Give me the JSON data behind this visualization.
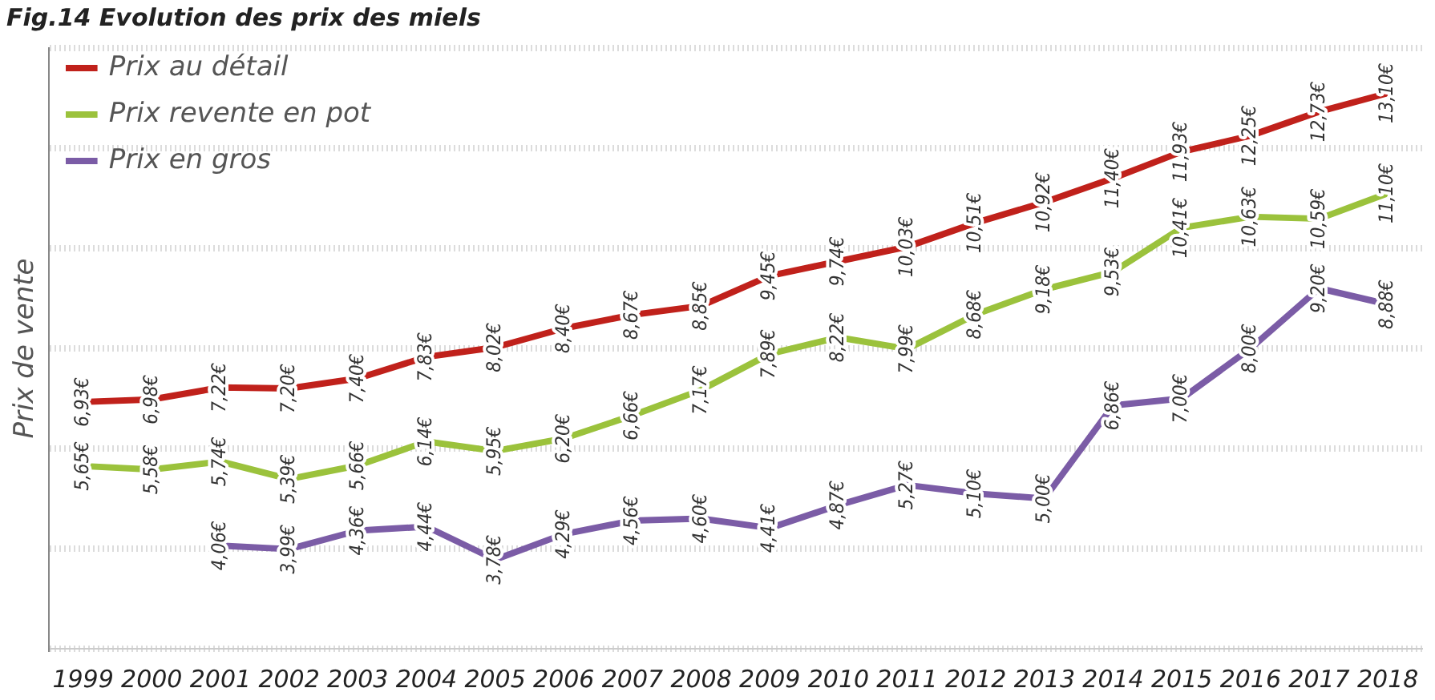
{
  "chart_data": {
    "type": "line",
    "title": "Fig.14 Evolution des prix des miels",
    "ylabel": "Prix de vente",
    "categories": [
      "1999",
      "2000",
      "2001",
      "2002",
      "2003",
      "2004",
      "2005",
      "2006",
      "2007",
      "2008",
      "2009",
      "2010",
      "2011",
      "2012",
      "2013",
      "2014",
      "2015",
      "2016",
      "2017",
      "2018"
    ],
    "ylim": [
      2,
      14
    ],
    "yticks": [
      {
        "value": 2,
        "label": null
      },
      {
        "value": 4,
        "label": null
      },
      {
        "value": 6,
        "label": null
      },
      {
        "value": 8,
        "label": null
      },
      {
        "value": 10,
        "label": null
      },
      {
        "value": 12,
        "label": null
      },
      {
        "value": 14,
        "label": null
      }
    ],
    "tick_labels": "x",
    "grid": "y",
    "legend": "top left",
    "marker": "none",
    "line_style": "solid",
    "series": [
      {
        "name": "Prix au détail",
        "color": "#c0211b",
        "values": [
          6.93,
          6.98,
          7.22,
          7.2,
          7.4,
          7.83,
          8.02,
          8.4,
          8.67,
          8.85,
          9.45,
          9.74,
          10.03,
          10.51,
          10.92,
          11.4,
          11.93,
          12.25,
          12.73,
          13.1
        ],
        "value_labels": [
          "6,93€",
          "6,98€",
          "7,22€",
          "7,20€",
          "7,40€",
          "7,83€",
          "8,02€",
          "8,40€",
          "8,67€",
          "8,85€",
          "9,45€",
          "9,74€",
          "10,03€",
          "10,51€",
          "10,92€",
          "11,40€",
          "11,93€",
          "12,25€",
          "12,73€",
          "13,10€"
        ]
      },
      {
        "name": "Prix revente en pot",
        "color": "#9bc23c",
        "values": [
          5.65,
          5.58,
          5.74,
          5.39,
          5.66,
          6.14,
          5.95,
          6.2,
          6.66,
          7.17,
          7.89,
          8.22,
          7.99,
          8.68,
          9.18,
          9.53,
          10.41,
          10.63,
          10.59,
          11.1
        ],
        "value_labels": [
          "5,65€",
          "5,58€",
          "5,74€",
          "5,39€",
          "5,66€",
          "6,14€",
          "5,95€",
          "6,20€",
          "6,66€",
          "7,17€",
          "7,89€",
          "8,22€",
          "7,99€",
          "8,68€",
          "9,18€",
          "9,53€",
          "10,41€",
          "10,63€",
          "10,59€",
          "11,10€"
        ]
      },
      {
        "name": "Prix en gros",
        "color": "#7b5ca6",
        "values": [
          null,
          null,
          4.06,
          3.99,
          4.36,
          4.44,
          3.78,
          4.29,
          4.56,
          4.6,
          4.41,
          4.87,
          5.27,
          5.1,
          5.0,
          6.86,
          7.0,
          8.0,
          9.2,
          8.88
        ],
        "value_labels": [
          null,
          null,
          "4,06€",
          "3,99€",
          "4,36€",
          "4,44€",
          "3,78€",
          "4,29€",
          "4,56€",
          "4,60€",
          "4,41€",
          "4,87€",
          "5,27€",
          "5,10€",
          "5,00€",
          "6,86€",
          "7,00€",
          "8,00€",
          "9,20€",
          "8,88€"
        ]
      }
    ]
  }
}
